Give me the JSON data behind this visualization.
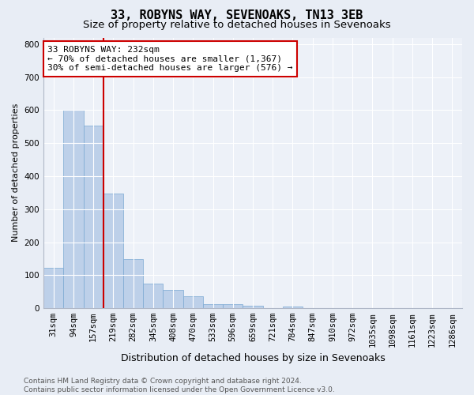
{
  "title": "33, ROBYNS WAY, SEVENOAKS, TN13 3EB",
  "subtitle": "Size of property relative to detached houses in Sevenoaks",
  "xlabel": "Distribution of detached houses by size in Sevenoaks",
  "ylabel": "Number of detached properties",
  "categories": [
    "31sqm",
    "94sqm",
    "157sqm",
    "219sqm",
    "282sqm",
    "345sqm",
    "408sqm",
    "470sqm",
    "533sqm",
    "596sqm",
    "659sqm",
    "721sqm",
    "784sqm",
    "847sqm",
    "910sqm",
    "972sqm",
    "1035sqm",
    "1098sqm",
    "1161sqm",
    "1223sqm",
    "1286sqm"
  ],
  "values": [
    122,
    601,
    553,
    348,
    148,
    75,
    55,
    35,
    13,
    12,
    7,
    0,
    5,
    0,
    0,
    0,
    0,
    0,
    0,
    0,
    0
  ],
  "bar_color": "#bdd0e9",
  "bar_edge_color": "#7aa8d2",
  "annotation_text": "33 ROBYNS WAY: 232sqm\n← 70% of detached houses are smaller (1,367)\n30% of semi-detached houses are larger (576) →",
  "vline_x_index": 2,
  "vline_color": "#cc0000",
  "box_color": "#cc0000",
  "ylim": [
    0,
    820
  ],
  "yticks": [
    0,
    100,
    200,
    300,
    400,
    500,
    600,
    700,
    800
  ],
  "bg_color": "#e8edf5",
  "plot_bg_color": "#edf1f8",
  "footer": "Contains HM Land Registry data © Crown copyright and database right 2024.\nContains public sector information licensed under the Open Government Licence v3.0.",
  "title_fontsize": 11,
  "subtitle_fontsize": 9.5,
  "xlabel_fontsize": 9,
  "ylabel_fontsize": 8,
  "tick_fontsize": 7.5,
  "annotation_fontsize": 8,
  "footer_fontsize": 6.5
}
